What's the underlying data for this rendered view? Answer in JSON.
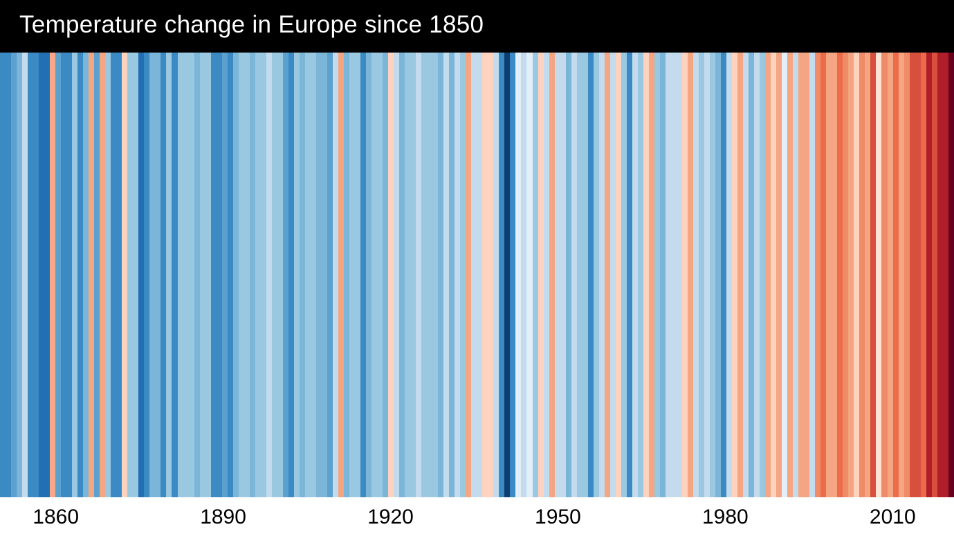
{
  "chart": {
    "type": "warming-stripes",
    "title": "Temperature change in Europe since 1850",
    "title_fontsize": 35,
    "title_color": "#ffffff",
    "header_background": "#000000",
    "axis_background": "#ffffff",
    "axis_label_color": "#000000",
    "axis_label_fontsize": 30,
    "year_start": 1850,
    "year_end": 2021,
    "axis_ticks": [
      {
        "year": 1860,
        "label": "1860"
      },
      {
        "year": 1890,
        "label": "1890"
      },
      {
        "year": 1920,
        "label": "1920"
      },
      {
        "year": 1950,
        "label": "1950"
      },
      {
        "year": 1980,
        "label": "1980"
      },
      {
        "year": 2010,
        "label": "2010"
      }
    ],
    "stripe_colors": [
      "#3b8ac4",
      "#3b8ac4",
      "#5ca0ce",
      "#7bb6d9",
      "#c3dbed",
      "#3b8ac4",
      "#3b8ac4",
      "#2270b3",
      "#2270b3",
      "#f7a889",
      "#5ca0ce",
      "#3b8ac4",
      "#3b8ac4",
      "#9ac8e0",
      "#3b8ac4",
      "#7bb6d9",
      "#f4a582",
      "#5ca0ce",
      "#f4a582",
      "#9ac8e0",
      "#3b8ac4",
      "#3b8ac4",
      "#fdd3c0",
      "#9ac8e0",
      "#9ac8e0",
      "#2270b3",
      "#3b8ac4",
      "#7bb6d9",
      "#7bb6d9",
      "#3b8ac4",
      "#9ac8e0",
      "#3b8ac4",
      "#9ac8e0",
      "#9ac8e0",
      "#9ac8e0",
      "#7bb6d9",
      "#9ac8e0",
      "#9ac8e0",
      "#3b8ac4",
      "#3b8ac4",
      "#5ca0ce",
      "#3b8ac4",
      "#7bb6d9",
      "#9ac8e0",
      "#9ac8e0",
      "#7bb6d9",
      "#9ac8e0",
      "#9ac8e0",
      "#c3dbed",
      "#9ac8e0",
      "#9ac8e0",
      "#5ca0ce",
      "#3b8ac4",
      "#9ac8e0",
      "#7bb6d9",
      "#9ac8e0",
      "#9ac8e0",
      "#7bb6d9",
      "#7bb6d9",
      "#5ca0ce",
      "#c3dbed",
      "#f4a582",
      "#7bb6d9",
      "#9ac8e0",
      "#9ac8e0",
      "#3b8ac4",
      "#7bb6d9",
      "#9ac8e0",
      "#9ac8e0",
      "#7bb6d9",
      "#fdd3c0",
      "#c3dbed",
      "#7bb6d9",
      "#9ac8e0",
      "#9ac8e0",
      "#c3dbed",
      "#9ac8e0",
      "#9ac8e0",
      "#9ac8e0",
      "#7bb6d9",
      "#c3dbed",
      "#7bb6d9",
      "#c3dbed",
      "#9ac8e0",
      "#f4a582",
      "#c3dbed",
      "#c3dbed",
      "#fdd3c0",
      "#fdd3c0",
      "#c3dbed",
      "#3b8ac4",
      "#0c3e70",
      "#3b8ac4",
      "#e2eff8",
      "#c3dbed",
      "#e2eff8",
      "#9ac8e0",
      "#fdd3c0",
      "#c3dbed",
      "#f4a582",
      "#c3dbed",
      "#c3dbed",
      "#7bb6d9",
      "#c3dbed",
      "#9ac8e0",
      "#9ac8e0",
      "#3b8ac4",
      "#9ac8e0",
      "#c3dbed",
      "#f4a582",
      "#c3dbed",
      "#fdd3c0",
      "#9ac8e0",
      "#3b8ac4",
      "#c3dbed",
      "#9ac8e0",
      "#fdd3c0",
      "#f4a582",
      "#9ac8e0",
      "#7bb6d9",
      "#c3dbed",
      "#c3dbed",
      "#c3dbed",
      "#fdd3c0",
      "#f4a582",
      "#c3dbed",
      "#9ac8e0",
      "#c3dbed",
      "#9ac8e0",
      "#7bb6d9",
      "#3b8ac4",
      "#c3dbed",
      "#fdd3c0",
      "#f4a582",
      "#c3dbed",
      "#7bb6d9",
      "#c3dbed",
      "#9ac8e0",
      "#f4a582",
      "#fdd3c0",
      "#f4a582",
      "#e2eff8",
      "#f4a582",
      "#c3dbed",
      "#f4a582",
      "#f4a582",
      "#c3dbed",
      "#f08b67",
      "#ec6b4b",
      "#f4a582",
      "#f4a582",
      "#ec6b4b",
      "#f08b67",
      "#f4a582",
      "#fdd3c0",
      "#f08b67",
      "#f4a582",
      "#d7503e",
      "#fbe3d6",
      "#f08b67",
      "#f4a582",
      "#ec6b4b",
      "#f4a582",
      "#f08b67",
      "#d7503e",
      "#d7503e",
      "#ec6b4b",
      "#b01f29",
      "#d7503e",
      "#b01f29",
      "#b01f29",
      "#67001f"
    ]
  }
}
